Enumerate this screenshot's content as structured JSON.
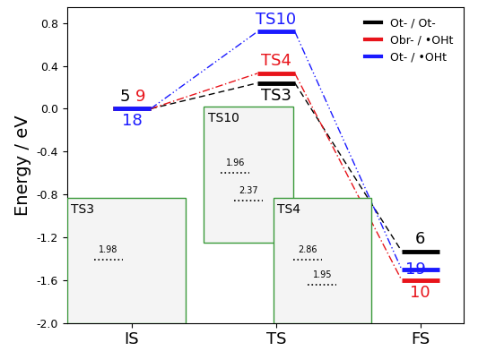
{
  "chart_data": {
    "type": "line",
    "y_label": "Energy / eV",
    "categories": [
      "IS",
      "TS",
      "FS"
    ],
    "ylim": [
      -2.0,
      0.95
    ],
    "yticks": [
      -2.0,
      -1.6,
      -1.2,
      -0.8,
      -0.4,
      0.0,
      0.4,
      0.8
    ],
    "legend": "upper right",
    "series": [
      {
        "name": "Ot- / Ot-",
        "color": "#000000",
        "line_style": "dashed",
        "values": [
          0.0,
          0.24,
          -1.33
        ],
        "point_labels": [
          "5",
          "TS3",
          "6"
        ]
      },
      {
        "name": "Obr- / •OHt",
        "color": "#e8141b",
        "line_style": "dashdot",
        "values": [
          0.0,
          0.33,
          -1.6
        ],
        "point_labels": [
          "9",
          "TS4",
          "10"
        ]
      },
      {
        "name": "Ot- / •OHt",
        "color": "#1a1aff",
        "line_style": "dashdotdot",
        "values": [
          0.0,
          0.72,
          -1.5
        ],
        "point_labels": [
          "18",
          "TS10",
          "19"
        ]
      }
    ],
    "insets": [
      {
        "label": "TS3",
        "distances": [
          1.98
        ]
      },
      {
        "label": "TS10",
        "distances": [
          1.96,
          2.37
        ]
      },
      {
        "label": "TS4",
        "distances": [
          2.86,
          1.95
        ]
      }
    ]
  }
}
